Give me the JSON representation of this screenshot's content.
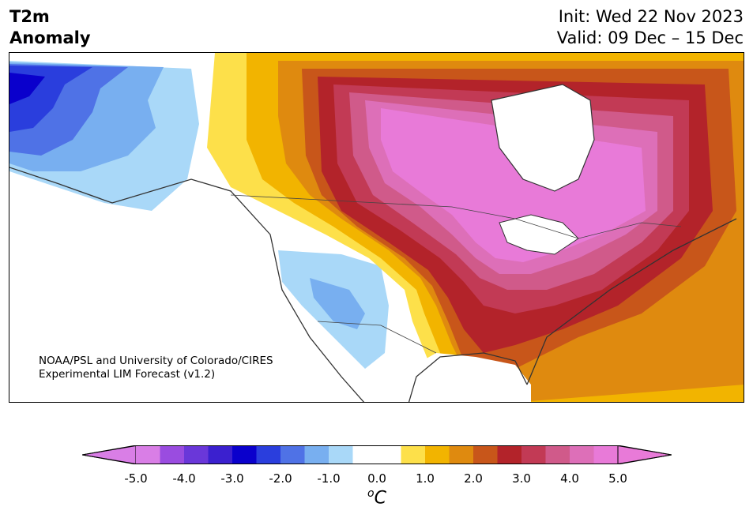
{
  "header": {
    "title_line1": "T2m",
    "title_line2": "Anomaly",
    "init": "Init: Wed 22 Nov 2023",
    "valid": "Valid: 09 Dec – 15 Dec"
  },
  "credit": {
    "line1": "NOAA/PSL and University of Colorado/CIRES",
    "line2": "Experimental LIM Forecast (v1.2)"
  },
  "colorbar": {
    "unit_base": "C",
    "unit_sup": "o",
    "ticks": [
      "-5.0",
      "-4.0",
      "-3.0",
      "-2.0",
      "-1.0",
      "0.0",
      "1.0",
      "2.0",
      "3.0",
      "4.0",
      "5.0"
    ],
    "colors": [
      "#d97ee6",
      "#9a4ce0",
      "#6a37d9",
      "#3b20cf",
      "#0a00cc",
      "#2a3edd",
      "#4f72e6",
      "#78aff0",
      "#a9d8f8",
      "#ffffff",
      "#ffffff",
      "#fde04a",
      "#f2b400",
      "#df8a0f",
      "#c8561a",
      "#b3232a",
      "#c23a55",
      "#d05a8a",
      "#dd6fb8",
      "#e87ad8"
    ],
    "under_color": "#d97ee6",
    "over_color": "#e87ad8"
  },
  "map": {
    "region": "North America",
    "variable": "2m temperature anomaly"
  }
}
